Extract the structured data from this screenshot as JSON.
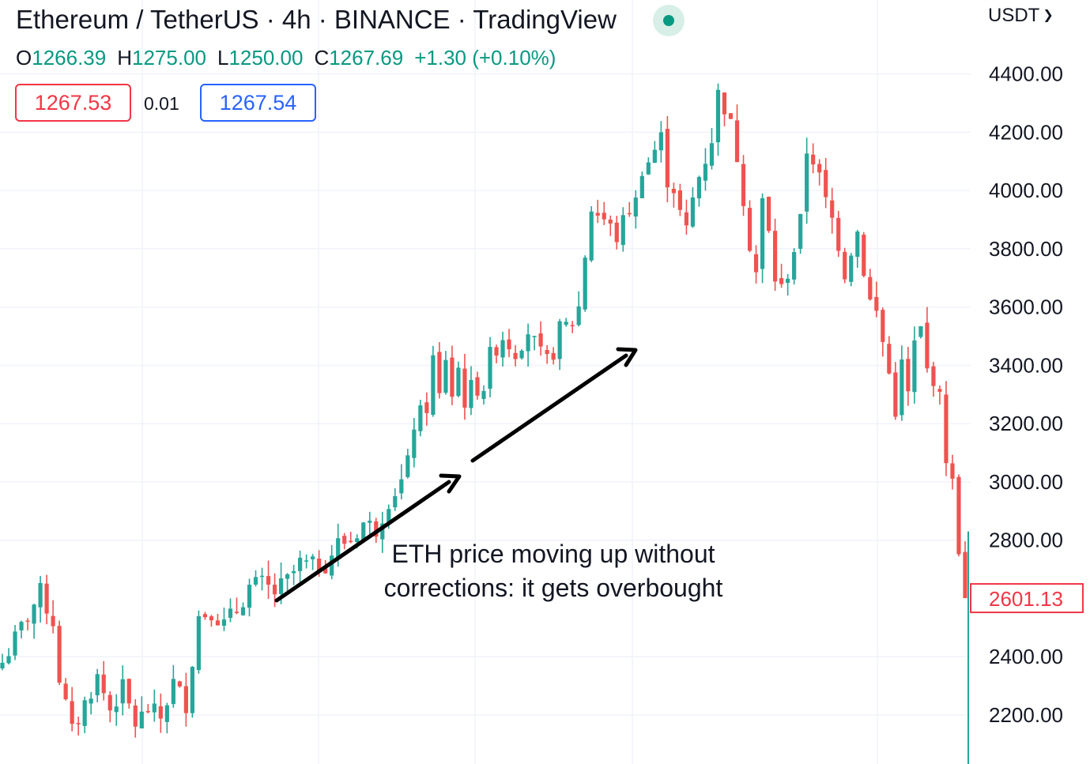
{
  "header": {
    "title": "Ethereum / TetherUS · 4h · BINANCE · TradingView",
    "currency": "USDT"
  },
  "ohlc": {
    "o_label": "O",
    "o": "1266.39",
    "h_label": "H",
    "h": "1275.00",
    "l_label": "L",
    "l": "1250.00",
    "c_label": "C",
    "c": "1267.69",
    "change": "+1.30 (+0.10%)"
  },
  "quote": {
    "sell": "1267.53",
    "spread": "0.01",
    "buy": "1267.54"
  },
  "annotation": {
    "line1": "ETH price moving up without",
    "line2": "corrections: it gets overbought"
  },
  "colors": {
    "up": "#26a69a",
    "down": "#ef5350",
    "grid": "#f0f3fa",
    "text": "#131722",
    "last_price": "#f23645"
  },
  "chart_data": {
    "type": "candlestick",
    "title": "Ethereum / TetherUS · 4h · BINANCE · TradingView",
    "ylim": [
      2000,
      4420
    ],
    "yticks": [
      2200,
      2400,
      2800,
      3000,
      3200,
      3400,
      3600,
      3800,
      4000,
      4200,
      4400
    ],
    "ytick_labels": [
      "2200.00",
      "2400.00",
      "2800.00",
      "3000.00",
      "3200.00",
      "3400.00",
      "3600.00",
      "3800.00",
      "4000.00",
      "4200.00",
      "4400.00"
    ],
    "last_price": 2601.13,
    "last_price_label": "2601.13",
    "grid": true,
    "close_path": [
      [
        0,
        2380
      ],
      [
        6,
        2620
      ],
      [
        8,
        2520
      ],
      [
        9,
        2330
      ],
      [
        11,
        2140
      ],
      [
        13,
        2240
      ],
      [
        15,
        2330
      ],
      [
        17,
        2220
      ],
      [
        19,
        2290
      ],
      [
        21,
        2170
      ],
      [
        23,
        2220
      ],
      [
        25,
        2190
      ],
      [
        27,
        2310
      ],
      [
        29,
        2240
      ],
      [
        31,
        2540
      ],
      [
        33,
        2560
      ],
      [
        35,
        2510
      ],
      [
        37,
        2560
      ],
      [
        39,
        2640
      ],
      [
        41,
        2650
      ],
      [
        43,
        2620
      ],
      [
        45,
        2660
      ],
      [
        47,
        2720
      ],
      [
        49,
        2710
      ],
      [
        51,
        2720
      ],
      [
        53,
        2790
      ],
      [
        55,
        2800
      ],
      [
        57,
        2860
      ],
      [
        59,
        2840
      ],
      [
        61,
        2940
      ],
      [
        63,
        3000
      ],
      [
        64,
        3060
      ],
      [
        65,
        3200
      ],
      [
        67,
        3260
      ],
      [
        68,
        3420
      ],
      [
        69,
        3290
      ],
      [
        70,
        3430
      ],
      [
        71,
        3300
      ],
      [
        72,
        3390
      ],
      [
        73,
        3280
      ],
      [
        74,
        3320
      ],
      [
        76,
        3330
      ],
      [
        77,
        3430
      ],
      [
        79,
        3500
      ],
      [
        81,
        3450
      ],
      [
        83,
        3520
      ],
      [
        85,
        3430
      ],
      [
        86,
        3410
      ],
      [
        87,
        3450
      ],
      [
        88,
        3520
      ],
      [
        90,
        3550
      ],
      [
        91,
        3600
      ],
      [
        92,
        3780
      ],
      [
        93,
        3940
      ],
      [
        95,
        3900
      ],
      [
        97,
        3840
      ],
      [
        99,
        3940
      ],
      [
        100,
        3960
      ],
      [
        101,
        4080
      ],
      [
        102,
        4100
      ],
      [
        103,
        4140
      ],
      [
        104,
        4180
      ],
      [
        105,
        4040
      ],
      [
        106,
        4010
      ],
      [
        107,
        3920
      ],
      [
        108,
        3860
      ],
      [
        109,
        3970
      ],
      [
        110,
        4050
      ],
      [
        111,
        4110
      ],
      [
        112,
        4180
      ],
      [
        113,
        4330
      ],
      [
        114,
        4290
      ],
      [
        115,
        4220
      ],
      [
        116,
        4120
      ],
      [
        117,
        3980
      ],
      [
        118,
        3820
      ],
      [
        119,
        3720
      ],
      [
        120,
        3960
      ],
      [
        121,
        3850
      ],
      [
        122,
        3700
      ],
      [
        123,
        3660
      ],
      [
        124,
        3720
      ],
      [
        125,
        3800
      ],
      [
        126,
        3890
      ],
      [
        127,
        4140
      ],
      [
        128,
        4110
      ],
      [
        129,
        4040
      ],
      [
        130,
        3960
      ],
      [
        131,
        3900
      ],
      [
        132,
        3820
      ],
      [
        133,
        3720
      ],
      [
        134,
        3800
      ],
      [
        135,
        3860
      ],
      [
        136,
        3730
      ],
      [
        137,
        3620
      ],
      [
        138,
        3580
      ],
      [
        139,
        3480
      ],
      [
        140,
        3370
      ],
      [
        141,
        3250
      ],
      [
        142,
        3400
      ],
      [
        143,
        3300
      ],
      [
        144,
        3470
      ],
      [
        145,
        3520
      ],
      [
        146,
        3380
      ],
      [
        147,
        3360
      ],
      [
        148,
        3280
      ],
      [
        149,
        3090
      ],
      [
        150,
        2990
      ],
      [
        151,
        2780
      ],
      [
        152,
        2601.13
      ]
    ]
  }
}
